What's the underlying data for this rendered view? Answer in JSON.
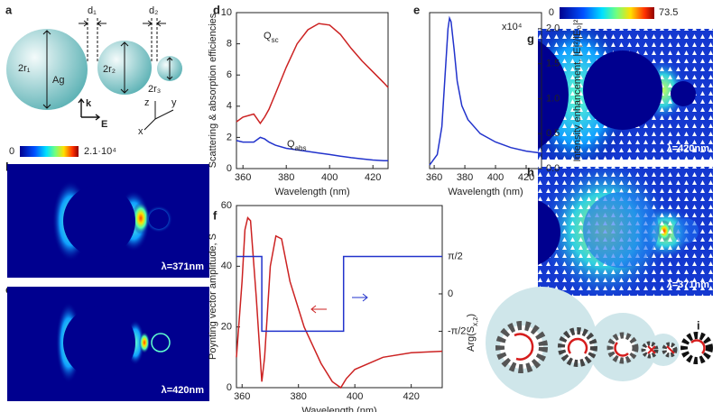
{
  "panel_labels": [
    "a",
    "b",
    "c",
    "d",
    "e",
    "f",
    "g",
    "h",
    "i"
  ],
  "schematic": {
    "radii": [
      "2r₁",
      "2r₂",
      "2r₃"
    ],
    "material": "Ag",
    "gaps": [
      "d₁",
      "d₂"
    ],
    "k": "k",
    "E": "E",
    "axes": [
      "z",
      "y",
      "x"
    ]
  },
  "field_maps": {
    "colorbar_bc": [
      "0",
      "2.1·10⁴"
    ],
    "colorbar_gh": [
      "0",
      "73.5"
    ],
    "wavelengths": {
      "b": "λ=371nm",
      "c": "λ=420nm",
      "g": "λ=420nm",
      "h": "λ=371nm"
    }
  },
  "chart_data": [
    {
      "type": "line",
      "xlabel": "Wavelength (nm)",
      "ylabel": "Scattering & absorption efficiencies",
      "xlim": [
        357,
        427
      ],
      "ylim": [
        0,
        10
      ],
      "xticks": [
        360,
        380,
        400,
        420
      ],
      "yticks": [
        0,
        2,
        4,
        6,
        8,
        10
      ],
      "y_axis_side": "left",
      "x": [
        357,
        360,
        365,
        368,
        370,
        372,
        375,
        380,
        385,
        390,
        395,
        400,
        405,
        410,
        415,
        420,
        425,
        427
      ],
      "series": [
        {
          "color": "#cc2222",
          "values": [
            3.0,
            3.3,
            3.5,
            2.9,
            3.3,
            3.8,
            4.8,
            6.5,
            8.0,
            8.9,
            9.3,
            9.2,
            8.6,
            7.7,
            6.9,
            6.2,
            5.5,
            5.2
          ]
        },
        {
          "color": "#2233cc",
          "values": [
            1.8,
            1.7,
            1.7,
            2.0,
            1.9,
            1.7,
            1.5,
            1.3,
            1.2,
            1.1,
            1.0,
            0.9,
            0.8,
            0.7,
            0.62,
            0.55,
            0.5,
            0.5
          ]
        }
      ],
      "annotations": [
        [
          "Q",
          "sc"
        ],
        [
          "Q",
          "abs"
        ]
      ]
    },
    {
      "type": "line",
      "xlabel": "Wavelength (nm)",
      "ylabel": "Intensity enhancement, |E|²/|E₀|²",
      "xlim": [
        357,
        430
      ],
      "ylim": [
        0,
        2.23
      ],
      "xticks": [
        360,
        380,
        400,
        420
      ],
      "yticks": [
        {
          "value": 0,
          "label": "0.0"
        },
        {
          "value": 0.5,
          "label": "0.5"
        },
        {
          "value": 1,
          "label": "1.0"
        },
        {
          "value": 1.5,
          "label": "1.5"
        },
        {
          "value": 2,
          "label": "2.0"
        }
      ],
      "y_axis_side": "right",
      "x": [
        357,
        362,
        365,
        367,
        369,
        370,
        371,
        373,
        375,
        378,
        382,
        390,
        400,
        410,
        420,
        430
      ],
      "series": [
        {
          "color": "#2233cc",
          "values": [
            0.05,
            0.2,
            0.6,
            1.3,
            2.0,
            2.15,
            2.1,
            1.7,
            1.25,
            0.9,
            0.7,
            0.5,
            0.38,
            0.3,
            0.25,
            0.22
          ]
        }
      ],
      "annotations": [
        [
          "x10⁴"
        ]
      ]
    },
    {
      "type": "line",
      "xlabel": "Wavelength (nm)",
      "ylabel": "Poynting vector amplitude, S",
      "y2label": [
        "Arg(S",
        "x,z",
        ")"
      ],
      "xlim": [
        358,
        431
      ],
      "ylim": [
        0,
        60
      ],
      "xticks": [
        360,
        380,
        400,
        420
      ],
      "yticks": [
        0,
        20,
        40,
        60
      ],
      "y_axis_side": "left",
      "y2lim": [
        -3.94,
        3.71
      ],
      "y2ticks": [
        {
          "value": 1.5708,
          "label": "π/2"
        },
        0,
        {
          "value": -1.5708,
          "label": "-π/2"
        }
      ],
      "series": [
        {
          "color": "#cc2222",
          "x": [
            358,
            360,
            361,
            362,
            363,
            365,
            367,
            368,
            370,
            372,
            374,
            377,
            382,
            388,
            392,
            395,
            397,
            400,
            410,
            420,
            431
          ],
          "values": [
            10,
            35,
            52,
            56,
            55,
            30,
            2,
            10,
            40,
            50,
            49,
            35,
            20,
            8,
            2,
            0,
            3,
            6,
            10,
            11.5,
            12
          ]
        },
        {
          "color": "#2233cc",
          "axis": "y2",
          "x": [
            358,
            367,
            367,
            396,
            396,
            431
          ],
          "values": [
            1.5708,
            1.5708,
            -1.5708,
            -1.5708,
            1.5708,
            1.5708
          ]
        }
      ]
    }
  ]
}
